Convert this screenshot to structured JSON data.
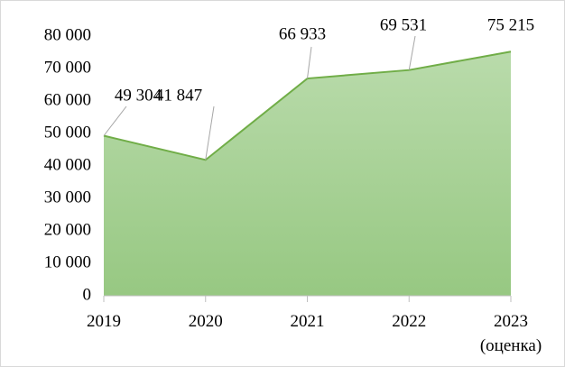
{
  "chart_data": {
    "type": "area",
    "categories": [
      "2019",
      "2020",
      "2021",
      "2022",
      "2023\n(оценка)"
    ],
    "values": [
      49304,
      41847,
      66933,
      69531,
      75215
    ],
    "value_labels": [
      "49 304",
      "41 847",
      "66 933",
      "69 531",
      "75 215"
    ],
    "color": "#70ad47",
    "ylim": [
      0,
      80000
    ],
    "yticks": [
      0,
      {
        "value": 10000,
        "label": "10 000"
      },
      {
        "value": 20000,
        "label": "20 000"
      },
      {
        "value": 30000,
        "label": "30 000"
      },
      {
        "value": 40000,
        "label": "40 000"
      },
      {
        "value": 50000,
        "label": "50 000"
      },
      {
        "value": 60000,
        "label": "60 000"
      },
      {
        "value": 70000,
        "label": "70 000"
      },
      {
        "value": 80000,
        "label": "80 000"
      }
    ],
    "grid": false
  }
}
